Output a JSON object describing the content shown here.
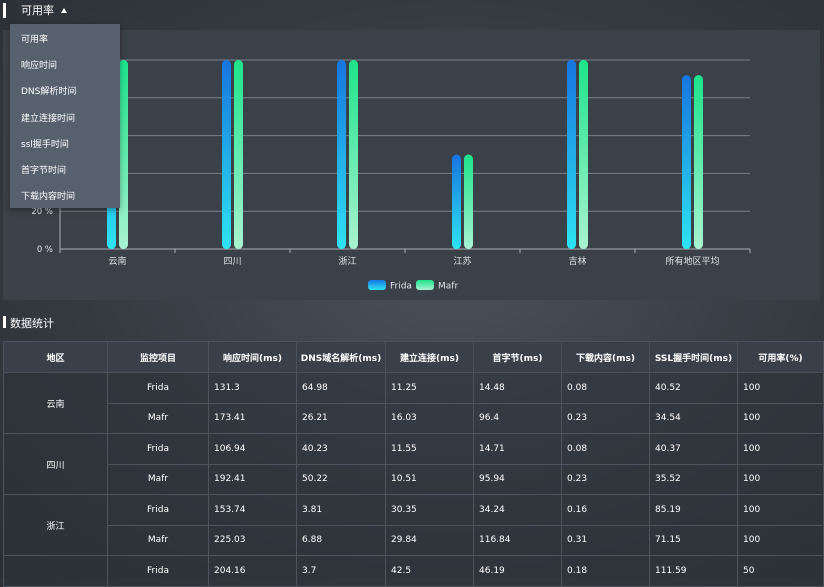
{
  "header": {
    "metric_label": "可用率"
  },
  "dropdown": {
    "items": [
      "可用率",
      "响应时间",
      "DNS解析时间",
      "建立连接时间",
      "ssl握手时间",
      "首字节时间",
      "下载内容时间"
    ]
  },
  "colors": {
    "frida_top": "#1675e0",
    "frida_bottom": "#2ee4f2",
    "mafr_top": "#1de38b",
    "mafr_bottom": "#a9f2d0",
    "axis_text": "#dfe3ea",
    "grid": "#7a818b"
  },
  "chart_data": {
    "type": "bar",
    "categories": [
      "云南",
      "四川",
      "浙江",
      "江苏",
      "吉林",
      "所有地区平均"
    ],
    "series": [
      {
        "name": "Frida",
        "values": [
          100,
          100,
          100,
          50,
          100,
          92
        ]
      },
      {
        "name": "Mafr",
        "values": [
          100,
          100,
          100,
          50,
          100,
          92
        ]
      }
    ],
    "yticks": [
      "0 %",
      "20 %"
    ],
    "ylim": [
      0,
      100
    ],
    "legend_position": "bottom-center"
  },
  "stats": {
    "title": "数据统计",
    "columns": [
      "地区",
      "监控项目",
      "响应时间(ms)",
      "DNS域名解析(ms)",
      "建立连接(ms)",
      "首字节(ms)",
      "下载内容(ms)",
      "SSL握手时间(ms)",
      "可用率(%)"
    ],
    "groups": [
      {
        "region": "云南",
        "rows": [
          {
            "name": "Frida",
            "values": [
              "131.3",
              "64.98",
              "11.25",
              "14.48",
              "0.08",
              "40.52",
              "100"
            ]
          },
          {
            "name": "Mafr",
            "values": [
              "173.41",
              "26.21",
              "16.03",
              "96.4",
              "0.23",
              "34.54",
              "100"
            ]
          }
        ]
      },
      {
        "region": "四川",
        "rows": [
          {
            "name": "Frida",
            "values": [
              "106.94",
              "40.23",
              "11.55",
              "14.71",
              "0.08",
              "40.37",
              "100"
            ]
          },
          {
            "name": "Mafr",
            "values": [
              "192.41",
              "50.22",
              "10.51",
              "95.94",
              "0.23",
              "35.52",
              "100"
            ]
          }
        ]
      },
      {
        "region": "浙江",
        "rows": [
          {
            "name": "Frida",
            "values": [
              "153.74",
              "3.81",
              "30.35",
              "34.24",
              "0.16",
              "85.19",
              "100"
            ]
          },
          {
            "name": "Mafr",
            "values": [
              "225.03",
              "6.88",
              "29.84",
              "116.84",
              "0.31",
              "71.15",
              "100"
            ]
          }
        ]
      },
      {
        "region": "",
        "rows": [
          {
            "name": "Frida",
            "values": [
              "204.16",
              "3.7",
              "42.5",
              "46.19",
              "0.18",
              "111.59",
              "50"
            ]
          }
        ]
      }
    ]
  }
}
